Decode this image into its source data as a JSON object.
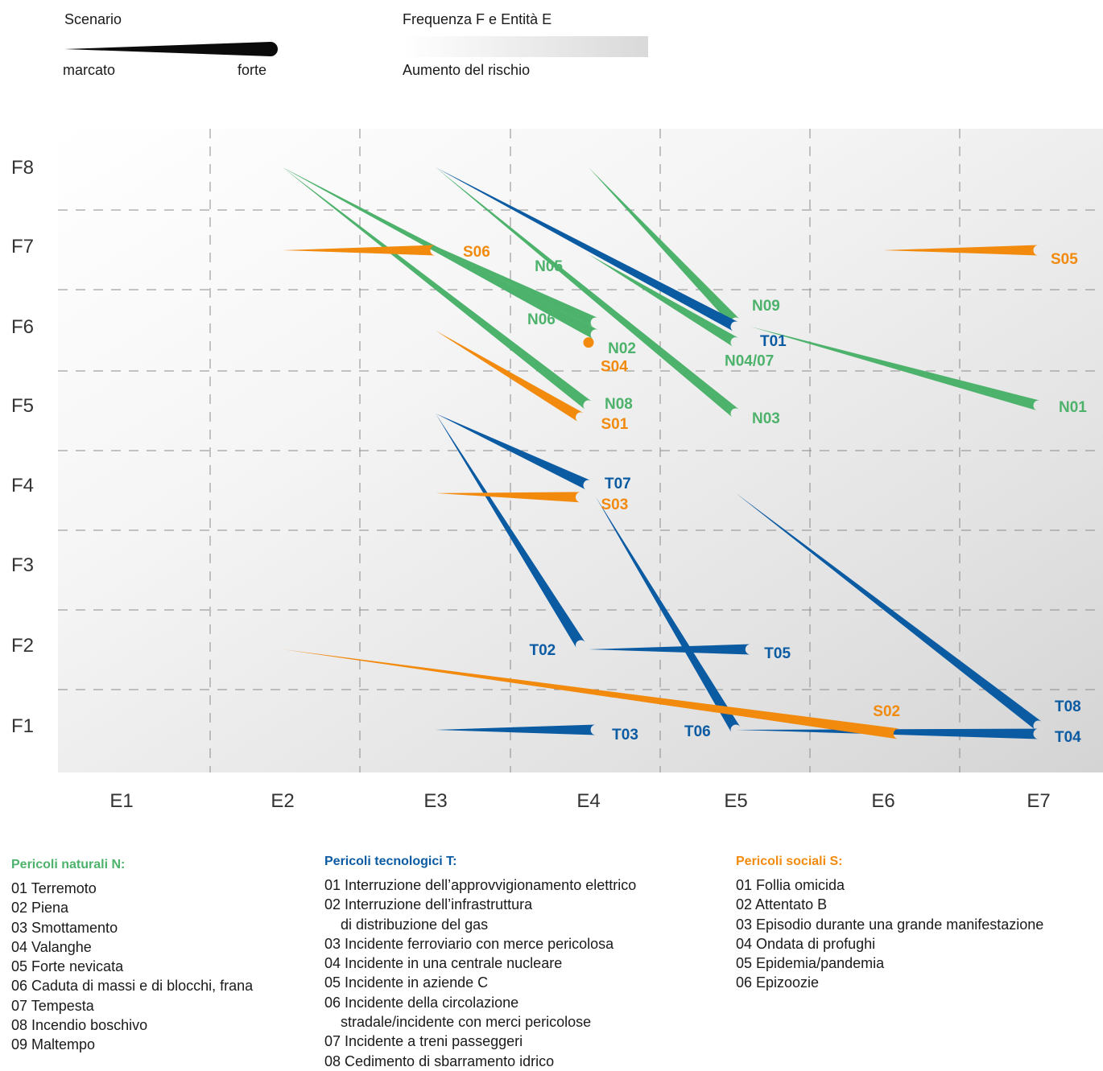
{
  "legend": {
    "scenario_title": "Scenario",
    "scenario_low": "marcato",
    "scenario_high": "forte",
    "risk_title": "Frequenza F e Entità E",
    "risk_sub": "Aumento del rischio"
  },
  "colors": {
    "natural": "#4db26b",
    "technological": "#0b5ba3",
    "social": "#f28a0e",
    "grid": "#8c8c8c",
    "text": "#1a1a1a"
  },
  "chart_data": {
    "type": "line",
    "xlabel": "",
    "ylabel": "",
    "x_categories": [
      "E1",
      "E2",
      "E3",
      "E4",
      "E5",
      "E6",
      "E7"
    ],
    "y_categories": [
      "F1",
      "F2",
      "F3",
      "F4",
      "F5",
      "F6",
      "F7",
      "F8"
    ],
    "xlim": [
      0.5,
      7.5
    ],
    "ylim": [
      0.5,
      8.5
    ],
    "note_encoding": "",
    "series": [
      {
        "name": "N01",
        "group": "natural",
        "from": [
          5.1,
          6.0
        ],
        "to": [
          7.0,
          5.0
        ]
      },
      {
        "name": "N02",
        "group": "natural",
        "from": [
          2.0,
          8.0
        ],
        "to": [
          4.05,
          5.9
        ]
      },
      {
        "name": "N03",
        "group": "natural",
        "from": [
          3.0,
          8.0
        ],
        "to": [
          5.0,
          4.9
        ]
      },
      {
        "name": "N04/07",
        "group": "natural",
        "from": [
          4.0,
          6.9
        ],
        "to": [
          5.0,
          5.8
        ]
      },
      {
        "name": "N05",
        "group": "natural",
        "from": [
          3.0,
          7.0
        ],
        "to": [
          4.05,
          6.05
        ]
      },
      {
        "name": "N06",
        "group": "natural",
        "from": [
          2.0,
          8.0
        ],
        "to": [
          4.0,
          5.95
        ]
      },
      {
        "name": "N08",
        "group": "natural",
        "from": [
          2.0,
          8.0
        ],
        "to": [
          4.0,
          5.0
        ]
      },
      {
        "name": "N09",
        "group": "natural",
        "from": [
          4.0,
          8.0
        ],
        "to": [
          5.0,
          6.05
        ]
      },
      {
        "name": "T01",
        "group": "technological",
        "from": [
          3.0,
          8.0
        ],
        "to": [
          5.0,
          6.0
        ]
      },
      {
        "name": "T02",
        "group": "technological",
        "from": [
          3.0,
          4.9
        ],
        "to": [
          3.95,
          2.0
        ]
      },
      {
        "name": "T03",
        "group": "technological",
        "from": [
          3.0,
          0.95
        ],
        "to": [
          4.05,
          0.95
        ]
      },
      {
        "name": "T04",
        "group": "technological",
        "from": [
          5.0,
          0.95
        ],
        "to": [
          7.0,
          0.9
        ]
      },
      {
        "name": "T05",
        "group": "technological",
        "from": [
          4.0,
          1.95
        ],
        "to": [
          5.1,
          1.95
        ]
      },
      {
        "name": "T06",
        "group": "technological",
        "from": [
          4.05,
          3.85
        ],
        "to": [
          5.0,
          0.95
        ]
      },
      {
        "name": "T07",
        "group": "technological",
        "from": [
          3.0,
          4.9
        ],
        "to": [
          4.0,
          4.0
        ]
      },
      {
        "name": "T08",
        "group": "technological",
        "from": [
          5.0,
          3.9
        ],
        "to": [
          7.0,
          1.0
        ]
      },
      {
        "name": "S01",
        "group": "social",
        "from": [
          3.0,
          5.95
        ],
        "to": [
          3.95,
          4.85
        ]
      },
      {
        "name": "S02",
        "group": "social",
        "from": [
          2.0,
          1.95
        ],
        "to": [
          6.1,
          0.9
        ]
      },
      {
        "name": "S03",
        "group": "social",
        "from": [
          3.0,
          3.9
        ],
        "to": [
          3.95,
          3.85
        ]
      },
      {
        "name": "S04",
        "group": "social",
        "from": [
          4.0,
          5.8
        ],
        "to": [
          4.0,
          5.8
        ]
      },
      {
        "name": "S05",
        "group": "social",
        "from": [
          6.0,
          6.95
        ],
        "to": [
          7.0,
          6.95
        ]
      },
      {
        "name": "S06",
        "group": "social",
        "from": [
          2.0,
          6.95
        ],
        "to": [
          3.0,
          6.95
        ]
      }
    ]
  },
  "categories": {
    "natural": {
      "title": "Pericoli naturali N:",
      "items": [
        "01 Terremoto",
        "02 Piena",
        "03 Smottamento",
        "04 Valanghe",
        "05 Forte nevicata",
        "06 Caduta di massi e di blocchi, frana",
        "07 Tempesta",
        "08 Incendio boschivo",
        "09 Maltempo"
      ]
    },
    "technological": {
      "title": "Pericoli tecnologici T:",
      "items": [
        "01 Interruzione dell’approvvigionamento elettrico",
        "02 Interruzione dell’infrastruttura",
        "di distribuzione del gas",
        "03 Incidente ferroviario con merce pericolosa",
        "04 Incidente in una centrale nucleare",
        "05 Incidente in aziende C",
        "06 Incidente della circolazione",
        "stradale/incidente con merci pericolose",
        "07 Incidente a treni passeggeri",
        "08 Cedimento di sbarramento idrico"
      ]
    },
    "social": {
      "title": "Pericoli sociali S:",
      "items": [
        "01 Follia omicida",
        "02 Attentato B",
        "03 Episodio durante una grande manifestazione",
        "04 Ondata di profughi",
        "05 Epidemia/pandemia",
        "06 Epizoozie"
      ]
    }
  }
}
